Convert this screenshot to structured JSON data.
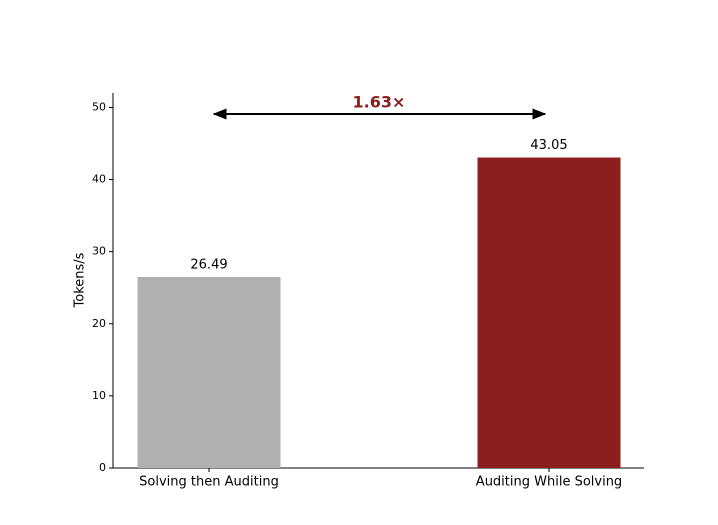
{
  "chart_data": {
    "type": "bar",
    "y_label": "Tokens/s",
    "categories": [
      "Solving then Auditing",
      "Auditing While Solving"
    ],
    "values": [
      26.49,
      43.05
    ],
    "colors": [
      "#b0b0b0",
      "#8b1e1e"
    ],
    "annotation": "1.63×",
    "annotation_color": "#8b1e1e",
    "ylim": [
      0,
      52
    ],
    "yticks": [
      0,
      10,
      20,
      30,
      40,
      50
    ],
    "grid": false
  }
}
